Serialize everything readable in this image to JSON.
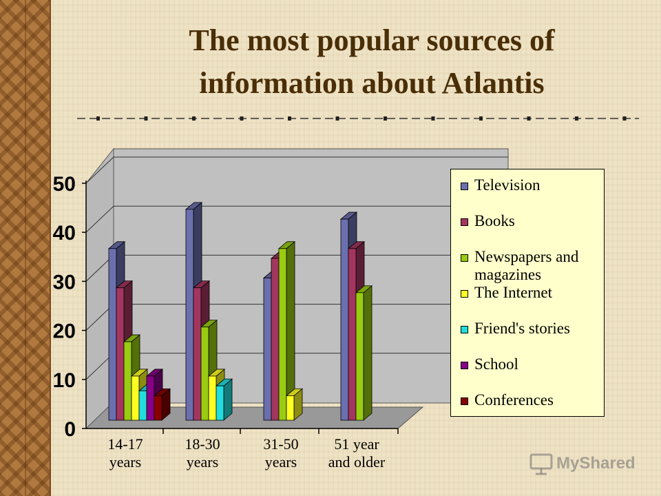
{
  "title": {
    "line1": "The most popular sources of",
    "line2": "information about Atlantis"
  },
  "chart_data": {
    "type": "bar",
    "categories": [
      [
        "14-17",
        "years"
      ],
      [
        "18-30",
        "years"
      ],
      [
        "31-50",
        "years"
      ],
      [
        "51 year",
        "and older"
      ]
    ],
    "yticks": [
      0,
      10,
      20,
      30,
      40,
      50
    ],
    "ylim": [
      0,
      50
    ],
    "grid": true,
    "legend_position": "right",
    "series": [
      {
        "name": "Television",
        "color": "#6b6fae",
        "values": [
          35,
          43,
          29,
          41
        ]
      },
      {
        "name": "Books",
        "color": "#a3365f",
        "values": [
          27,
          27,
          33,
          35
        ]
      },
      {
        "name": "Newspapers and magazines",
        "color": "#99cc11",
        "values": [
          16,
          19,
          35,
          26
        ]
      },
      {
        "name": "The Internet",
        "color": "#ffff22",
        "values": [
          9,
          9,
          5,
          null
        ]
      },
      {
        "name": "Friend's stories",
        "color": "#22dddd",
        "values": [
          6,
          7,
          null,
          null
        ]
      },
      {
        "name": "School",
        "color": "#880088",
        "values": [
          9,
          null,
          null,
          null
        ]
      },
      {
        "name": "Conferences",
        "color": "#880000",
        "values": [
          5,
          null,
          null,
          null
        ]
      }
    ]
  },
  "legend": {
    "items": [
      {
        "label": "Television",
        "color": "#6b6fae"
      },
      {
        "label": "Books",
        "color": "#a3365f"
      },
      {
        "label": "Newspapers and magazines",
        "color": "#99cc11"
      },
      {
        "label": "The Internet",
        "color": "#ffff22"
      },
      {
        "label": "Friend's stories",
        "color": "#22dddd"
      },
      {
        "label": "School",
        "color": "#880088"
      },
      {
        "label": "Conferences",
        "color": "#880000"
      }
    ]
  },
  "watermark": {
    "text": "MyShared",
    "icon": "projector-screen-icon"
  }
}
